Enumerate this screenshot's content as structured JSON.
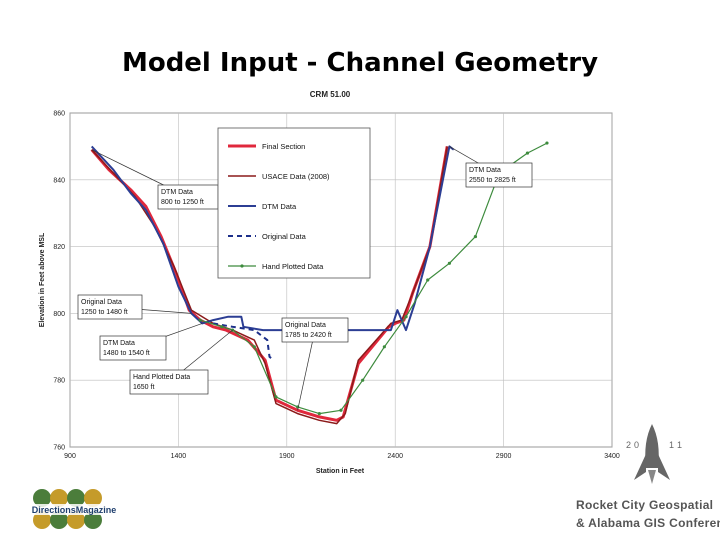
{
  "slide": {
    "title": "Model Input - Channel Geometry"
  },
  "chart_data": {
    "type": "line",
    "title": "CRM 51.00",
    "xlabel": "Station in Feet",
    "ylabel": "Elevation in Feet above MSL",
    "xlim": [
      900,
      3400
    ],
    "ylim": [
      760,
      860
    ],
    "xticks": [
      "900",
      "1400",
      "1900",
      "2400",
      "2900",
      "3400"
    ],
    "yticks": [
      "760",
      "780",
      "800",
      "820",
      "840",
      "860"
    ],
    "grid": true,
    "legend_position": "top-center",
    "series": [
      {
        "name": "Final Section",
        "color": "#e0283c",
        "width": 3,
        "dash": "",
        "marker": false,
        "x": [
          1000,
          1080,
          1180,
          1250,
          1320,
          1390,
          1450,
          1500,
          1560,
          1620,
          1720,
          1800,
          1850,
          1950,
          2050,
          2130,
          2160,
          2230,
          2370,
          2400,
          2440,
          2480,
          2560,
          2640
        ],
        "y": [
          849,
          843,
          837,
          832,
          823,
          812,
          801,
          798,
          796,
          795,
          792,
          786,
          774,
          771,
          769,
          768,
          769,
          785,
          796,
          797,
          798,
          806,
          820,
          850
        ]
      },
      {
        "name": "USACE Data (2008)",
        "color": "#8b1a1a",
        "width": 1.5,
        "dash": "",
        "marker": false,
        "x": [
          1000,
          1100,
          1200,
          1290,
          1380,
          1460,
          1560,
          1650,
          1750,
          1800,
          1850,
          1950,
          2050,
          2130,
          2170,
          2230,
          2380,
          2430,
          2480,
          2560,
          2640
        ],
        "y": [
          849,
          842,
          835,
          826,
          814,
          801,
          797,
          795,
          792,
          785,
          773,
          770,
          768,
          767,
          770,
          786,
          797,
          798,
          806,
          820,
          850
        ]
      },
      {
        "name": "DTM Data",
        "color": "#2c3e94",
        "width": 2,
        "dash": "",
        "marker": false,
        "x": [
          1000,
          1100,
          1180,
          1250,
          1330,
          1400,
          1460,
          1510,
          1560,
          1630,
          1690,
          1700,
          1790,
          2380,
          2410,
          2450,
          2490,
          2560,
          2650,
          2670
        ],
        "y": [
          850,
          843,
          836,
          831,
          821,
          808,
          800,
          797,
          798,
          799,
          799,
          796,
          795,
          795,
          801,
          795,
          803,
          820,
          850,
          849
        ]
      },
      {
        "name": "Original Data",
        "color": "#1c2f8a",
        "width": 2,
        "dash": "5,4",
        "marker": false,
        "x": [
          1560,
          1650,
          1750,
          1810,
          1820,
          1840
        ],
        "y": [
          797,
          796,
          795,
          792,
          787,
          786
        ]
      },
      {
        "name": "Hand Plotted Data",
        "color": "#3d8b3d",
        "width": 1.2,
        "dash": "",
        "marker": true,
        "x": [
          1500,
          1600,
          1650,
          1750,
          1850,
          1950,
          2050,
          2150,
          2250,
          2350,
          2450,
          2550,
          2650,
          2770,
          2880,
          3010,
          3100
        ],
        "y": [
          798,
          796,
          795,
          790,
          775,
          772,
          770,
          771,
          780,
          790,
          799,
          810,
          815,
          823,
          842,
          848,
          851
        ]
      }
    ],
    "annotations": [
      {
        "lines": [
          "DTM Data",
          "800 to 1250 ft"
        ]
      },
      {
        "lines": [
          "Original Data",
          "1250 to 1480 ft"
        ]
      },
      {
        "lines": [
          "DTM Data",
          "1480 to 1540 ft"
        ]
      },
      {
        "lines": [
          "Hand Plotted Data",
          "1650 ft"
        ]
      },
      {
        "lines": [
          "Original Data",
          "1785 to 2420 ft"
        ]
      },
      {
        "lines": [
          "DTM Data",
          "2550 to 2825 ft"
        ]
      }
    ]
  },
  "logos": {
    "left": {
      "text": "DirectionsMagazine"
    },
    "right": {
      "year": [
        "2",
        "0",
        "1",
        "1"
      ],
      "line1": "Rocket City Geospatial",
      "line2": "& Alabama GIS Conference"
    }
  }
}
